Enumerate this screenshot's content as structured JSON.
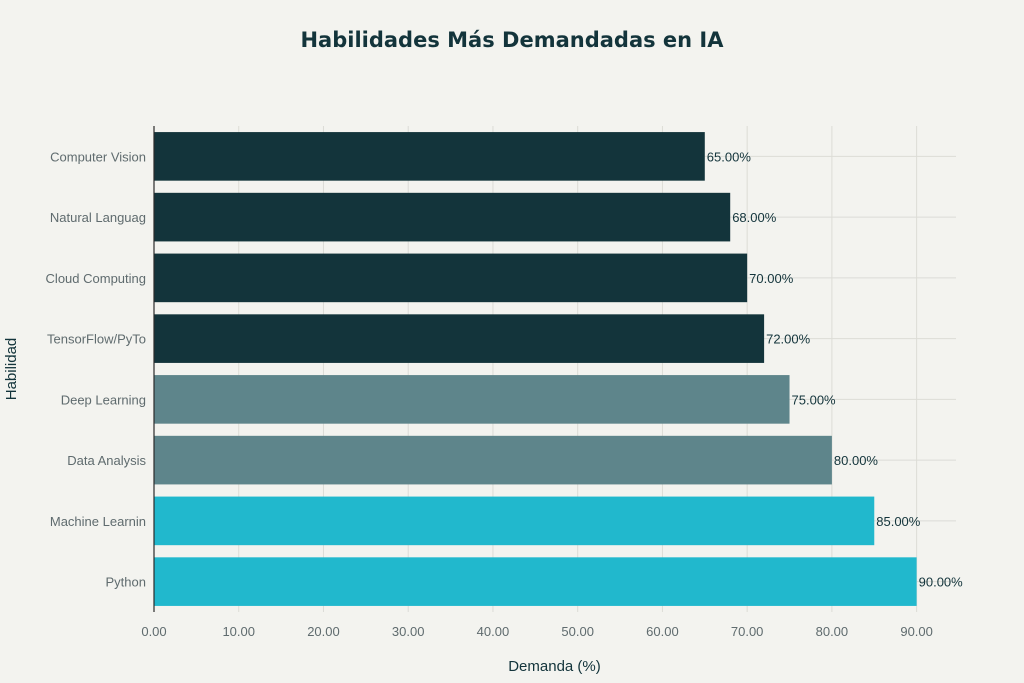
{
  "chart_data": {
    "type": "bar",
    "orientation": "horizontal",
    "title": "Habilidades Más Demandadas en IA",
    "xlabel": "Demanda (%)",
    "ylabel": "Habilidad",
    "categories": [
      "Computer Vision",
      "Natural Languag",
      "Cloud Computing",
      "TensorFlow/PyTo",
      "Deep Learning",
      "Data Analysis",
      "Machine Learnin",
      "Python"
    ],
    "values": [
      65,
      68,
      70,
      72,
      75,
      80,
      85,
      90
    ],
    "value_labels": [
      "65.00%",
      "68.00%",
      "70.00%",
      "72.00%",
      "75.00%",
      "80.00%",
      "85.00%",
      "90.00%"
    ],
    "bar_colors": [
      "#13343b",
      "#13343b",
      "#13343b",
      "#13343b",
      "#5e858b",
      "#5e858b",
      "#21b8cd",
      "#21b8cd"
    ],
    "xlim": [
      0,
      95
    ],
    "xticks": [
      0,
      10,
      20,
      30,
      40,
      50,
      60,
      70,
      80,
      90
    ],
    "xtick_labels": [
      "0.00",
      "10.00",
      "20.00",
      "30.00",
      "40.00",
      "50.00",
      "60.00",
      "70.00",
      "80.00",
      "90.00"
    ],
    "grid": true,
    "legend": "none"
  }
}
